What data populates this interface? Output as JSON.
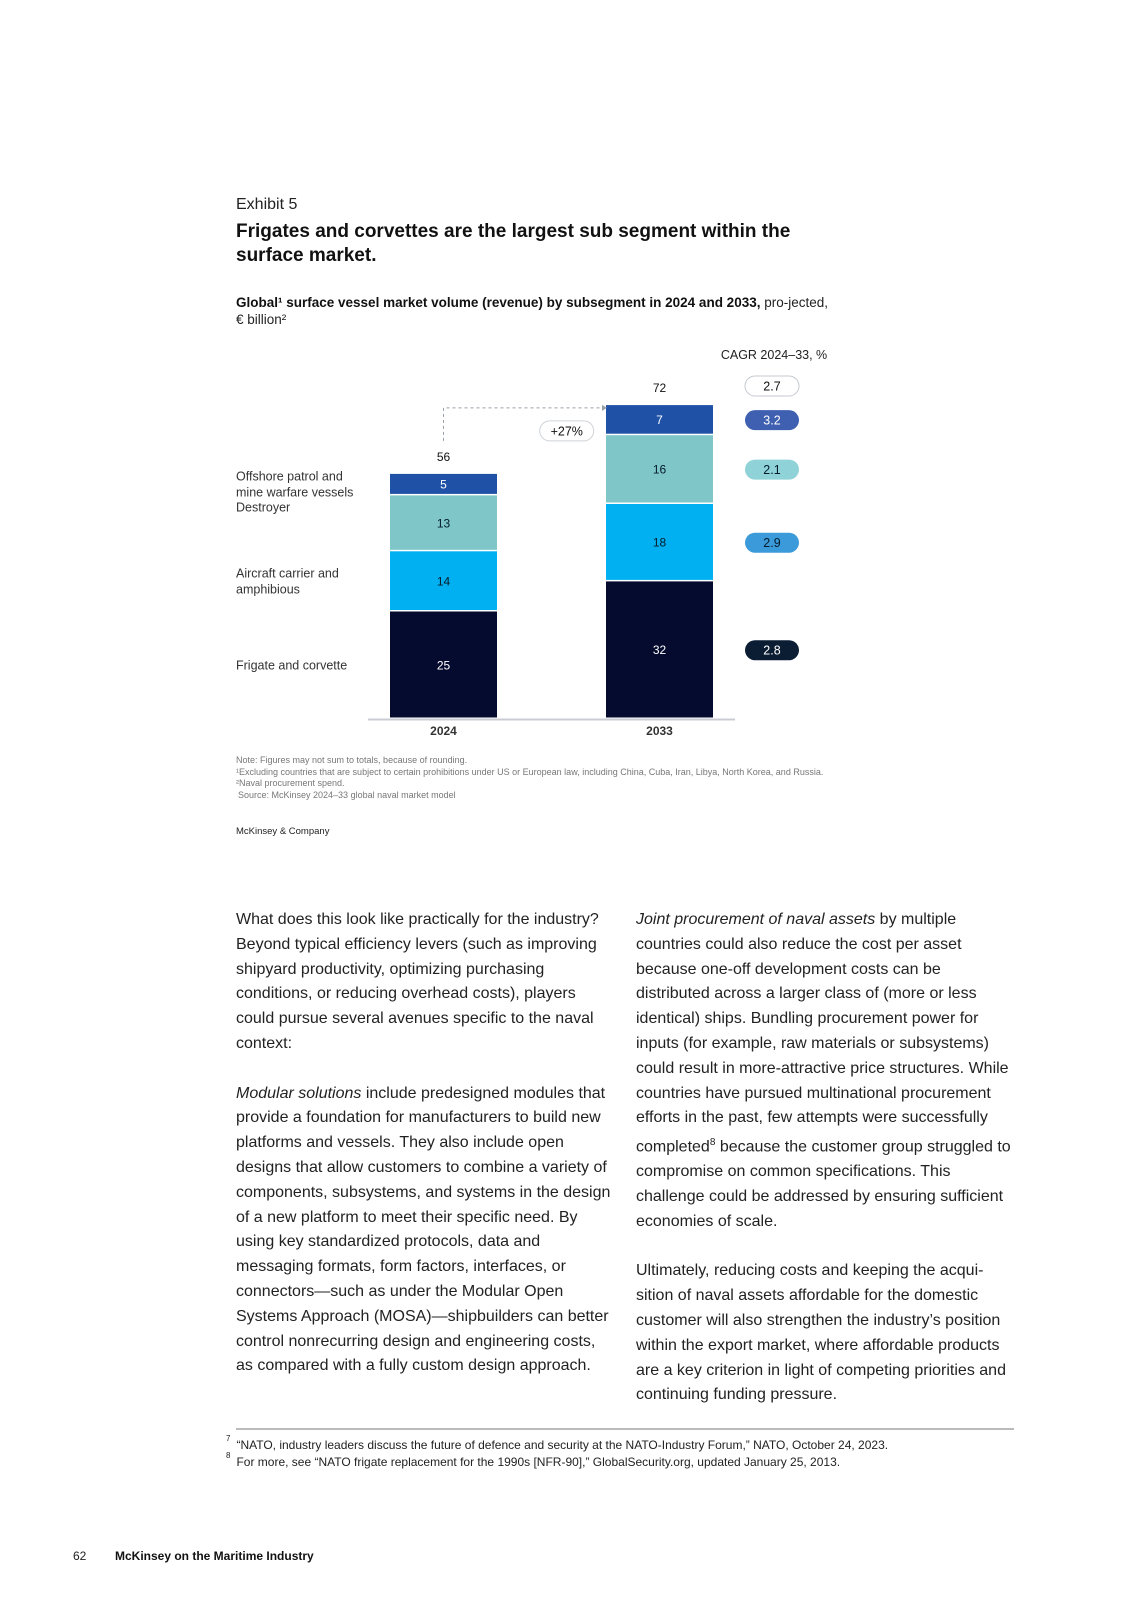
{
  "exhibit": {
    "label": "Exhibit 5",
    "title": "Frigates and corvettes are the largest sub segment within the surface market.",
    "subtitle_bold": "Global¹ surface vessel market volume (revenue) by subsegment in 2024 and 2033,",
    "subtitle_rest": " pro-jected, € billion²"
  },
  "chart_data": {
    "type": "bar",
    "stacked": true,
    "categories": [
      "2024",
      "2033"
    ],
    "series": [
      {
        "name": "Frigate and corvette",
        "values": [
          25,
          32
        ],
        "color": "#050b2e",
        "label_color": "#ffffff"
      },
      {
        "name": "Aircraft carrier and amphibious",
        "values": [
          14,
          18
        ],
        "color": "#00b0f0",
        "label_color": "#051c2c"
      },
      {
        "name": "Destroyer",
        "values": [
          13,
          16
        ],
        "color": "#7fc6c9",
        "label_color": "#051c2c"
      },
      {
        "name": "Offshore patrol and mine warfare vessels",
        "values": [
          5,
          7
        ],
        "color": "#1f52a7",
        "label_color": "#ffffff"
      }
    ],
    "series_display": [
      [
        "Frigate and corvette"
      ],
      [
        "Aircraft carrier and",
        "amphibious"
      ],
      [
        "Destroyer"
      ],
      [
        "Offshore patrol and",
        "mine warfare vessels"
      ]
    ],
    "totals": [
      56,
      72
    ],
    "growth_label": "+27%",
    "cagr_title": "CAGR 2024–33, %",
    "cagr_total": "2.7",
    "cagr_values": [
      {
        "value": "2.8",
        "fill": "#0b1d33",
        "text": "#ffffff"
      },
      {
        "value": "2.9",
        "fill": "#3b9ad9",
        "text": "#051c2c"
      },
      {
        "value": "2.1",
        "fill": "#8fd3d8",
        "text": "#051c2c"
      },
      {
        "value": "3.2",
        "fill": "#3f5fb0",
        "text": "#ffffff"
      }
    ]
  },
  "notes": {
    "note": "Note: Figures may not sum to totals, because of rounding.",
    "fn1": "¹Excluding countries that are subject to certain prohibitions under US or European law, including China, Cuba, Iran, Libya, North Korea, and Russia.",
    "fn2": "²Naval procurement spend.",
    "source": "Source: McKinsey 2024–33 global naval market model"
  },
  "brand": "McKinsey & Company",
  "body": {
    "left_p1": "What does this look like practically for the industry? Beyond typical efficiency levers (such as improving shipyard productivity, optimizing purchasing conditions, or reducing overhead costs), players could pursue several avenues specific to the naval context:",
    "left_p2_em": "Modular solutions",
    "left_p2_rest": " include predesigned modules that provide a foundation for manufacturers to build new platforms and vessels. They also include open designs that allow customers to combine a variety of components, subsystems, and systems in the design of a new platform to meet their specific need. By using key standardized protocols, data and messaging formats, form factors, interfaces, or connectors—such as under the Modular Open Systems Approach (MOSA)—shipbuilders can better control nonrecurring design and engineering costs, as compared with a fully custom design approach.",
    "right_p1_em": "Joint procurement of naval assets",
    "right_p1_a": " by multiple countries could also reduce the cost per asset because one-off development costs can be distributed across a larger class of (more or less identical) ships. Bundling procurement power for inputs (for example, raw materials or subsystems) could result in more-attractive price structures. While countries have pursued multinational procurement efforts in the past, few attempts were successfully completed",
    "right_p1_sup": "8",
    "right_p1_b": " because the customer group struggled to compromise on common specifications. This challenge could be addressed by ensuring sufficient economies of scale.",
    "right_p2": "Ultimately, reducing costs and keeping the acqui-sition of naval assets affordable for the domestic customer will also strengthen the industry’s position within the export market, where affordable products are a key criterion in light of competing priorities and continuing funding pressure."
  },
  "footnotes": [
    {
      "num": "7",
      "text": "“NATO, industry leaders discuss the future of defence and security at the NATO-Industry Forum,” NATO, October 24, 2023."
    },
    {
      "num": "8",
      "text": "For more, see “NATO frigate replacement for the 1990s [NFR-90],” GlobalSecurity.org, updated January 25, 2013."
    }
  ],
  "footer": {
    "page": "62",
    "publication": "McKinsey on the Maritime Industry"
  }
}
